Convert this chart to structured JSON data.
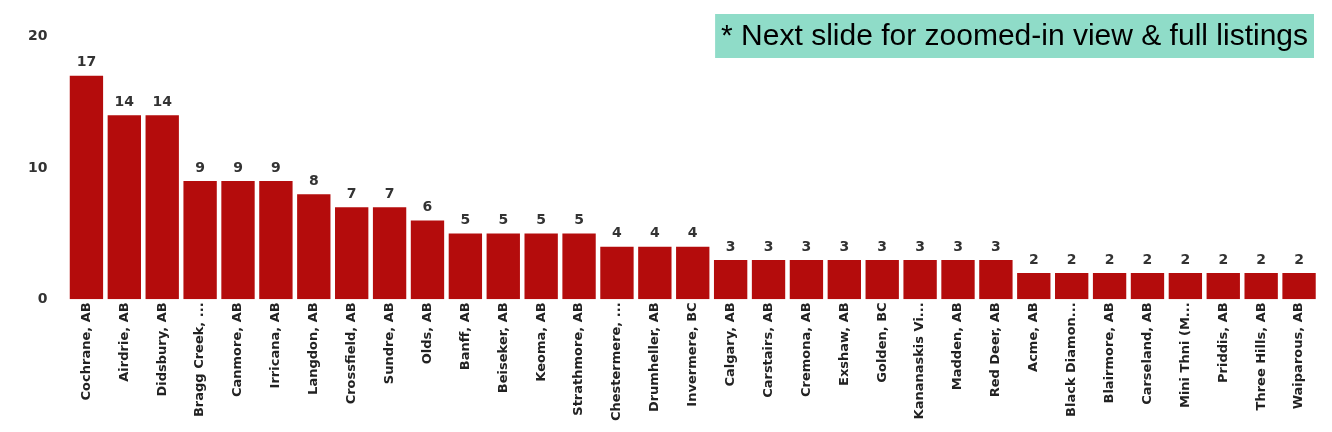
{
  "chart_data": {
    "type": "bar",
    "categories": [
      "Cochrane, AB",
      "Airdrie, AB",
      "Didsbury, AB",
      "Bragg Creek, ...",
      "Canmore, AB",
      "Irricana, AB",
      "Langdon, AB",
      "Crossfield, AB",
      "Sundre, AB",
      "Olds, AB",
      "Banff, AB",
      "Beiseker, AB",
      "Keoma, AB",
      "Strathmore, AB",
      "Chestermere, ...",
      "Drumheller, AB",
      "Invermere, BC",
      "Calgary, AB",
      "Carstairs, AB",
      "Cremona, AB",
      "Exshaw, AB",
      "Golden, BC",
      "Kananaskis Vi...",
      "Madden, AB",
      "Red Deer, AB",
      "Acme, AB",
      "Black Diamon...",
      "Blairmore, AB",
      "Carseland, AB",
      "Mini Thni (M...",
      "Priddis, AB",
      "Three Hills, AB",
      "Waiparous, AB"
    ],
    "values": [
      17,
      14,
      14,
      9,
      9,
      9,
      8,
      7,
      7,
      6,
      5,
      5,
      5,
      5,
      4,
      4,
      4,
      3,
      3,
      3,
      3,
      3,
      3,
      3,
      3,
      2,
      2,
      2,
      2,
      2,
      2,
      2,
      2
    ],
    "color": "#b40c0c",
    "ylim": [
      0,
      20
    ],
    "yticks": [
      0,
      10,
      20
    ],
    "grid": false,
    "legend": false,
    "data_labels": true,
    "annotations": [
      "* Next slide for zoomed-in view & full listings"
    ]
  }
}
